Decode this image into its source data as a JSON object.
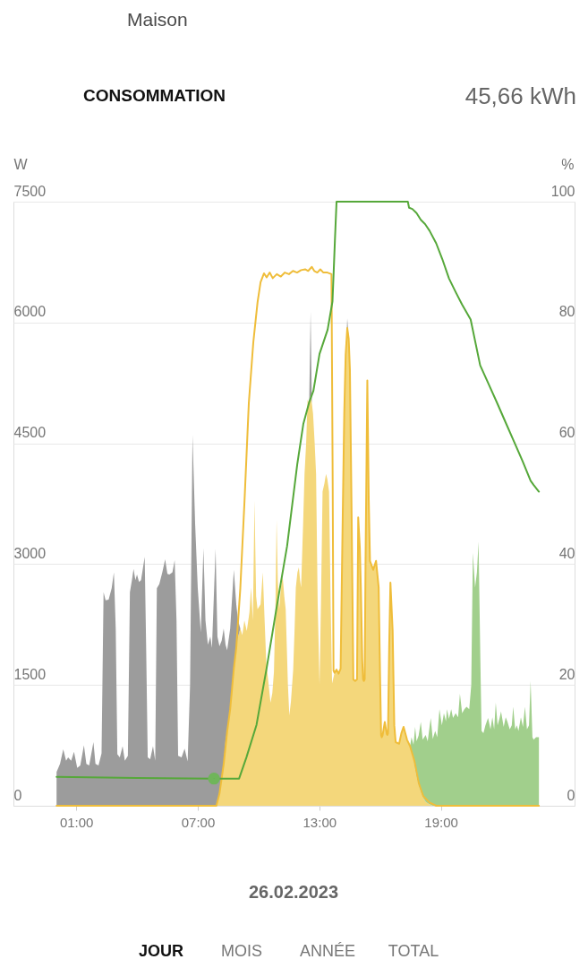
{
  "chart_data": {
    "type": "area",
    "title": "CONSOMMATION",
    "subtitle": "45,66 kWh",
    "ylabel": "W",
    "y2label": "%",
    "annotations": [
      "Maison",
      "26.02.2023",
      "JOUR",
      "MOIS",
      "ANNÉE",
      "TOTAL"
    ],
    "stacked": true,
    "grid": "y",
    "xlim": [
      -2.1,
      25.6
    ],
    "xticks": [
      {
        "value": 1,
        "label": "01:00"
      },
      {
        "value": 7,
        "label": "07:00"
      },
      {
        "value": 13,
        "label": "13:00"
      },
      {
        "value": 19,
        "label": "19:00"
      }
    ],
    "ylim": [
      0,
      7500
    ],
    "yticks": [
      0,
      1500,
      3000,
      4500,
      6000,
      7500
    ],
    "y2lim": [
      0,
      100
    ],
    "y2ticks": [
      0,
      20,
      40,
      60,
      80,
      100
    ],
    "x": [
      0.03,
      0.2,
      0.36,
      0.5,
      0.6,
      0.75,
      0.89,
      1.05,
      1.2,
      1.38,
      1.5,
      1.64,
      1.85,
      1.95,
      2.1,
      2.25,
      2.35,
      2.45,
      2.6,
      2.75,
      2.86,
      2.95,
      3.03,
      3.15,
      3.29,
      3.4,
      3.55,
      3.65,
      3.75,
      3.83,
      3.92,
      4.0,
      4.1,
      4.2,
      4.38,
      4.45,
      4.53,
      4.65,
      4.79,
      4.9,
      4.98,
      5.1,
      5.25,
      5.39,
      5.5,
      5.6,
      5.75,
      5.86,
      5.95,
      6.03,
      6.2,
      6.35,
      6.5,
      6.62,
      6.74,
      6.87,
      7.0,
      7.15,
      7.28,
      7.38,
      7.5,
      7.62,
      7.7,
      7.88,
      7.97,
      8.07,
      8.18,
      8.28,
      8.37,
      8.45,
      8.6,
      8.78,
      8.9,
      8.99,
      9.1,
      9.2,
      9.3,
      9.42,
      9.55,
      9.63,
      9.72,
      9.8,
      9.88,
      9.95,
      10.1,
      10.21,
      10.3,
      10.38,
      10.5,
      10.59,
      10.68,
      10.76,
      10.83,
      10.89,
      10.95,
      11.02,
      11.1,
      11.19,
      11.27,
      11.34,
      11.45,
      11.52,
      11.6,
      11.71,
      11.78,
      11.84,
      11.92,
      11.99,
      12.05,
      12.1,
      12.2,
      12.27,
      12.35,
      12.42,
      12.5,
      12.57,
      12.63,
      12.69,
      12.77,
      12.84,
      12.92,
      13.01,
      13.08,
      13.16,
      13.25,
      13.33,
      13.4,
      13.48,
      13.56,
      13.63,
      13.75,
      13.85,
      13.95,
      14.05,
      14.15,
      14.23,
      14.3,
      14.38,
      14.45,
      14.51,
      14.6,
      14.68,
      14.77,
      14.86,
      14.92,
      15.0,
      15.05,
      15.12,
      15.2,
      15.28,
      15.37,
      15.44,
      15.5,
      15.66,
      15.8,
      15.93,
      16.0,
      16.08,
      16.23,
      16.36,
      16.45,
      16.51,
      16.62,
      16.7,
      16.77,
      16.94,
      17.05,
      17.16,
      17.33,
      17.48,
      17.55,
      17.65,
      17.73,
      17.8,
      17.9,
      18.01,
      18.1,
      18.25,
      18.35,
      18.5,
      18.6,
      18.72,
      18.82,
      18.93,
      19.05,
      19.15,
      19.25,
      19.3,
      19.4,
      19.51,
      19.6,
      19.73,
      19.85,
      19.94,
      20.05,
      20.16,
      20.27,
      20.4,
      20.5,
      20.58,
      20.69,
      20.78,
      20.86,
      20.95,
      21.01,
      21.1,
      21.2,
      21.33,
      21.45,
      21.54,
      21.63,
      21.71,
      21.8,
      21.9,
      21.97,
      22.1,
      22.2,
      22.29,
      22.4,
      22.5,
      22.57,
      22.67,
      22.75,
      22.83,
      22.95,
      23.05,
      23.15,
      23.25,
      23.35,
      23.43,
      23.52,
      23.58,
      23.7,
      23.84
    ],
    "series": [
      {
        "color": "#f4d77b",
        "values": [
          null,
          null,
          null,
          null,
          null,
          null,
          null,
          null,
          null,
          null,
          null,
          null,
          null,
          null,
          null,
          null,
          null,
          null,
          null,
          null,
          null,
          null,
          null,
          null,
          null,
          null,
          null,
          null,
          null,
          null,
          null,
          null,
          null,
          null,
          null,
          null,
          null,
          null,
          null,
          null,
          null,
          null,
          null,
          null,
          null,
          null,
          null,
          null,
          null,
          null,
          null,
          null,
          null,
          null,
          null,
          null,
          null,
          null,
          null,
          null,
          null,
          null,
          null,
          0,
          30,
          150,
          330,
          520,
          800,
          920,
          1200,
          1700,
          1960,
          2100,
          2200,
          2120,
          2300,
          2170,
          2400,
          2710,
          2300,
          3790,
          2600,
          2440,
          2500,
          2900,
          2300,
          1790,
          1500,
          1280,
          1400,
          1660,
          2400,
          3550,
          2800,
          2440,
          2700,
          2850,
          2600,
          2440,
          1500,
          1120,
          1300,
          1690,
          2200,
          2710,
          2900,
          2960,
          2800,
          2710,
          3500,
          4120,
          4500,
          5040,
          5000,
          5100,
          5000,
          4870,
          4500,
          4120,
          2500,
          1500,
          2500,
          3900,
          4000,
          4120,
          4050,
          3900,
          2500,
          1520,
          1650,
          1690,
          1640,
          1700,
          3500,
          4870,
          5600,
          5930,
          5800,
          5410,
          3500,
          1570,
          1550,
          1570,
          3580,
          3200,
          2710,
          1800,
          1550,
          3000,
          5280,
          3800,
          3040,
          2930,
          3040,
          2710,
          1600,
          850,
          1040,
          880,
          2000,
          2770,
          2170,
          1000,
          790,
          770,
          900,
          980,
          820,
          740,
          660,
          570,
          450,
          360,
          260,
          170,
          110,
          50,
          30,
          10,
          0,
          null,
          null,
          null,
          null,
          null,
          null,
          null,
          null,
          null,
          null,
          null,
          null,
          null,
          null,
          null,
          null,
          null,
          null,
          null,
          null,
          null,
          null,
          null,
          null,
          null,
          null,
          null,
          null,
          null,
          null,
          null,
          null,
          null,
          null,
          null,
          null,
          null,
          null,
          null,
          null,
          null,
          null,
          null,
          null,
          null,
          null,
          null,
          null,
          null,
          null,
          null,
          null,
          null
        ]
      },
      {
        "color": "#a1cf8c",
        "values": [
          null,
          null,
          null,
          null,
          null,
          null,
          null,
          null,
          null,
          null,
          null,
          null,
          null,
          null,
          null,
          null,
          null,
          null,
          null,
          null,
          null,
          null,
          null,
          null,
          null,
          null,
          null,
          null,
          null,
          null,
          null,
          null,
          null,
          null,
          null,
          null,
          null,
          null,
          null,
          null,
          null,
          null,
          null,
          null,
          null,
          null,
          null,
          null,
          null,
          null,
          null,
          null,
          null,
          null,
          null,
          null,
          null,
          null,
          null,
          null,
          null,
          null,
          null,
          null,
          null,
          null,
          null,
          null,
          null,
          null,
          null,
          null,
          null,
          null,
          null,
          null,
          null,
          null,
          null,
          null,
          null,
          null,
          null,
          null,
          null,
          null,
          null,
          null,
          null,
          null,
          null,
          null,
          null,
          null,
          null,
          null,
          null,
          null,
          null,
          null,
          null,
          null,
          null,
          null,
          null,
          null,
          null,
          null,
          null,
          null,
          null,
          null,
          null,
          null,
          null,
          null,
          null,
          null,
          null,
          null,
          null,
          null,
          null,
          null,
          null,
          null,
          null,
          null,
          null,
          null,
          null,
          null,
          null,
          null,
          null,
          null,
          null,
          null,
          null,
          null,
          null,
          null,
          null,
          null,
          null,
          null,
          null,
          null,
          null,
          null,
          null,
          null,
          null,
          null,
          null,
          null,
          null,
          null,
          null,
          null,
          null,
          null,
          null,
          null,
          null,
          null,
          null,
          null,
          null,
          0,
          190,
          190,
          530,
          440,
          610,
          870,
          710,
          830,
          770,
          1080,
          830,
          930,
          850,
          1200,
          1000,
          1150,
          1050,
          1200,
          1080,
          1200,
          1090,
          1150,
          1100,
          1390,
          1150,
          1200,
          1230,
          1200,
          1500,
          3140,
          2710,
          2900,
          3280,
          1800,
          930,
          900,
          1000,
          1090,
          950,
          1100,
          950,
          1280,
          1000,
          1090,
          1170,
          980,
          1100,
          1040,
          950,
          1000,
          1230,
          950,
          1000,
          930,
          1100,
          980,
          1230,
          950,
          1000,
          1550,
          850,
          820,
          850,
          850
        ]
      },
      {
        "color": "#9c9c9c",
        "values": [
          420,
          520,
          700,
          560,
          600,
          560,
          670,
          470,
          500,
          750,
          520,
          500,
          790,
          520,
          500,
          650,
          2650,
          2550,
          2560,
          2700,
          2900,
          2200,
          640,
          600,
          740,
          560,
          620,
          2650,
          2800,
          2940,
          2800,
          2870,
          2780,
          2800,
          3090,
          2000,
          600,
          580,
          740,
          560,
          2700,
          2750,
          2900,
          3060,
          2880,
          2870,
          2900,
          3050,
          2300,
          620,
          600,
          710,
          550,
          1500,
          4600,
          3500,
          2700,
          2150,
          3200,
          2300,
          2000,
          2100,
          1960,
          3190,
          2070,
          1830,
          1720,
          1680,
          1200,
          1010,
          1000,
          1230,
          540,
          200,
          0,
          0,
          0,
          0,
          0,
          0,
          0,
          0,
          0,
          0,
          0,
          0,
          0,
          0,
          0,
          0,
          0,
          0,
          0,
          0,
          0,
          0,
          0,
          0,
          0,
          0,
          0,
          0,
          0,
          0,
          0,
          0,
          0,
          0,
          0,
          0,
          0,
          0,
          0,
          0,
          0,
          1040,
          0,
          0,
          0,
          0,
          0,
          0,
          0,
          0,
          0,
          0,
          0,
          0,
          0,
          0,
          0,
          0,
          0,
          0,
          0,
          0,
          0,
          120,
          0,
          null,
          null,
          null,
          null,
          null,
          null,
          null,
          null,
          null,
          null,
          null,
          null,
          null,
          null,
          null,
          null,
          null,
          null,
          null,
          null,
          null,
          null,
          null,
          null,
          null,
          null,
          null,
          null,
          null,
          null,
          null,
          null,
          null,
          null,
          null,
          null,
          null,
          null,
          null,
          null,
          null,
          null,
          null,
          null,
          null,
          null,
          null,
          null,
          null,
          null,
          null,
          null,
          null,
          null,
          null,
          null,
          null,
          null,
          null,
          null,
          null,
          null,
          null,
          null,
          null,
          null,
          null,
          null,
          null,
          null,
          null,
          null,
          null,
          null,
          null,
          null,
          null,
          null,
          null,
          null,
          null,
          null,
          null,
          null,
          null,
          null,
          null,
          null,
          null,
          null,
          null,
          null,
          null,
          null,
          null
        ]
      },
      {
        "type": "line",
        "color": "#efbd3a",
        "x": [
          0.03,
          7.92,
          8.07,
          8.28,
          8.45,
          8.6,
          8.78,
          8.9,
          9.1,
          9.31,
          9.52,
          9.74,
          9.95,
          10.1,
          10.27,
          10.4,
          10.55,
          10.7,
          10.9,
          11.1,
          11.3,
          11.5,
          11.7,
          11.9,
          12.1,
          12.3,
          12.45,
          12.63,
          12.75,
          12.9,
          13.05,
          13.2,
          13.4,
          13.6,
          13.66,
          13.7,
          13.75,
          13.85,
          13.95,
          14.05,
          14.15,
          14.23,
          14.3,
          14.38,
          14.45,
          14.51,
          14.6,
          14.68,
          14.77,
          14.86,
          14.92,
          15.0,
          15.05,
          15.12,
          15.16,
          15.2,
          15.24,
          15.28,
          15.37,
          15.44,
          15.5,
          15.66,
          15.8,
          15.93,
          16.0,
          16.05,
          16.08,
          16.12,
          16.23,
          16.33,
          16.36,
          16.39,
          16.45,
          16.51,
          16.62,
          16.7,
          16.77,
          16.94,
          17.05,
          17.16,
          17.33,
          17.48,
          17.7,
          17.91,
          18.13,
          18.44,
          18.77,
          23.84
        ],
        "values": [
          0,
          0,
          150,
          520,
          920,
          1200,
          1700,
          1960,
          2700,
          3800,
          5000,
          5750,
          6250,
          6500,
          6610,
          6560,
          6620,
          6550,
          6600,
          6570,
          6620,
          6600,
          6640,
          6620,
          6650,
          6660,
          6640,
          6690,
          6640,
          6620,
          6660,
          6620,
          6620,
          6600,
          4000,
          1680,
          1650,
          1690,
          1640,
          1700,
          3500,
          4870,
          5600,
          5930,
          5800,
          5410,
          3500,
          1570,
          1550,
          1570,
          3580,
          3200,
          2710,
          1800,
          1570,
          1550,
          1570,
          3000,
          5280,
          3800,
          3040,
          2930,
          3040,
          2710,
          1600,
          880,
          850,
          870,
          1040,
          890,
          880,
          900,
          2000,
          2770,
          2170,
          1000,
          790,
          770,
          900,
          980,
          820,
          740,
          550,
          280,
          120,
          40,
          0,
          0
        ]
      },
      {
        "type": "line",
        "axis": "y2",
        "color": "#56a83a",
        "x": [
          0.03,
          4.0,
          7.8,
          9.04,
          9.4,
          9.9,
          10.4,
          10.9,
          11.41,
          11.91,
          12.21,
          12.51,
          12.71,
          13.01,
          13.41,
          13.65,
          13.77,
          13.85,
          17.37,
          17.43,
          17.59,
          17.8,
          18.01,
          18.22,
          18.44,
          18.77,
          19.07,
          19.4,
          19.72,
          20.04,
          20.47,
          20.94,
          21.33,
          21.76,
          22.19,
          22.61,
          23.04,
          23.43,
          23.58,
          23.84
        ],
        "values": [
          4.8,
          4.6,
          4.5,
          4.5,
          8.0,
          13.4,
          22.8,
          33.0,
          43.0,
          56.5,
          63.2,
          66.9,
          68.7,
          74.8,
          78.8,
          83.5,
          93.6,
          100,
          100,
          99,
          98.8,
          98.1,
          97.0,
          96.3,
          95.2,
          93.1,
          90.5,
          87.3,
          85.1,
          83.0,
          80.5,
          72.9,
          70.0,
          66.8,
          63.5,
          60.3,
          57.0,
          53.8,
          53.1,
          52.0
        ]
      },
      {
        "type": "scatter",
        "axis": "y2",
        "color": "#6fb55a",
        "marker": "circle",
        "x": [
          7.8
        ],
        "values": [
          4.5
        ]
      }
    ]
  }
}
